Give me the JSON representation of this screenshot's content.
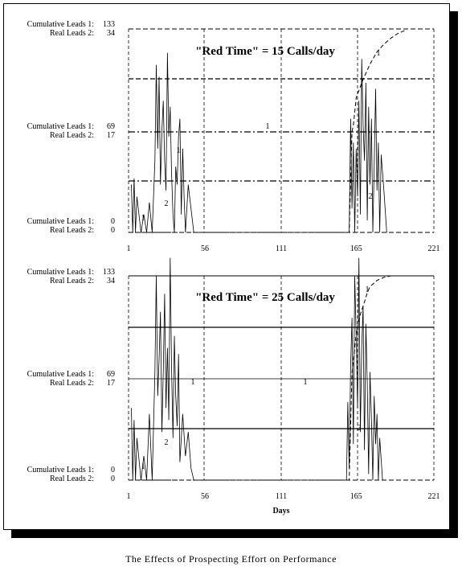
{
  "caption": "The Effects of Prospecting Effort on Performance",
  "chart_data": [
    {
      "type": "line",
      "title": "\"Red Time\" = 15 Calls/day",
      "y_labels": {
        "top": [
          "Cumulative Leads 1:",
          "133",
          "Real Leads 2:",
          "34"
        ],
        "middle": [
          "Cumulative Leads 1:",
          "69",
          "Real Leads 2:",
          "17"
        ],
        "bottom": [
          "Cumulative Leads 1:",
          "0",
          "Real Leads 2:",
          "0"
        ]
      },
      "ylim_series1": [
        0,
        133
      ],
      "ylim_series2": [
        0,
        34
      ],
      "x_ticks": [
        "1",
        "56",
        "111",
        "165",
        "221"
      ],
      "xlim": [
        1,
        221
      ],
      "xlabel": "",
      "grid": true,
      "series": [
        {
          "name": "1",
          "x": [
            1,
            110,
            111,
            160,
            162,
            163,
            165,
            170,
            175,
            180,
            185,
            190,
            195,
            200
          ],
          "y": [
            0,
            0,
            0,
            0,
            66,
            70,
            88,
            100,
            110,
            118,
            123,
            127,
            130,
            132
          ]
        },
        {
          "name": "2",
          "x": [
            3,
            4,
            5,
            6,
            7,
            10,
            12,
            14,
            16,
            18,
            20,
            21,
            22,
            23,
            24,
            25,
            26,
            27,
            28,
            29,
            30,
            31,
            32,
            33,
            34,
            35,
            36,
            37,
            38,
            39,
            40,
            41,
            42,
            44,
            46,
            48,
            160,
            161,
            162,
            163,
            164,
            165,
            166,
            167,
            168,
            169,
            170,
            171,
            172,
            173,
            174,
            175,
            176,
            177,
            178,
            179,
            180,
            181,
            182,
            183,
            185,
            187
          ],
          "y": [
            8,
            0,
            9,
            0,
            6,
            0,
            3,
            0,
            5,
            0,
            12,
            28,
            14,
            26,
            8,
            17,
            22,
            12,
            7,
            30,
            16,
            21,
            10,
            3,
            0,
            11,
            8,
            16,
            19,
            3,
            14,
            6,
            0,
            8,
            4,
            0,
            0,
            19,
            4,
            15,
            0,
            14,
            6,
            22,
            3,
            29,
            18,
            12,
            25,
            2,
            21,
            8,
            19,
            0,
            11,
            24,
            7,
            15,
            0,
            13,
            7,
            0
          ]
        }
      ]
    },
    {
      "type": "line",
      "title": "\"Red Time\" = 25 Calls/day",
      "y_labels": {
        "top": [
          "Cumulative Leads 1:",
          "133",
          "Real Leads 2:",
          "34"
        ],
        "middle": [
          "Cumulative Leads 1:",
          "69",
          "Real Leads 2:",
          "17"
        ],
        "bottom": [
          "Cumulative Leads 1:",
          "0",
          "Real Leads 2:",
          "0"
        ]
      },
      "ylim_series1": [
        0,
        133
      ],
      "ylim_series2": [
        0,
        34
      ],
      "x_ticks": [
        "1",
        "56",
        "111",
        "165",
        "221"
      ],
      "xlim": [
        1,
        221
      ],
      "xlabel": "Days",
      "grid": true,
      "series": [
        {
          "name": "1",
          "x": [
            1,
            160,
            162,
            165,
            168,
            171,
            173,
            175,
            180,
            185,
            190,
            195,
            200,
            210,
            221
          ],
          "y": [
            0,
            0,
            70,
            95,
            108,
            116,
            122,
            126,
            130,
            132,
            133,
            133,
            133,
            133,
            133
          ]
        },
        {
          "name": "2",
          "x": [
            3,
            4,
            5,
            6,
            7,
            10,
            12,
            14,
            16,
            18,
            20,
            21,
            22,
            23,
            24,
            25,
            26,
            27,
            28,
            29,
            30,
            31,
            32,
            33,
            34,
            35,
            36,
            37,
            38,
            40,
            42,
            44,
            46,
            48,
            158,
            159,
            160,
            161,
            162,
            163,
            164,
            165,
            166,
            167,
            168,
            169,
            170,
            171,
            172,
            173,
            174,
            175,
            176,
            177,
            178,
            179,
            180,
            181,
            182,
            184
          ],
          "y": [
            12,
            0,
            10,
            0,
            7,
            0,
            4,
            0,
            11,
            0,
            18,
            34,
            14,
            20,
            28,
            8,
            18,
            31,
            12,
            22,
            10,
            37,
            19,
            7,
            24,
            14,
            9,
            21,
            3,
            11,
            4,
            8,
            2,
            0,
            0,
            13,
            2,
            19,
            27,
            6,
            34,
            24,
            12,
            37,
            8,
            22,
            29,
            5,
            26,
            16,
            1,
            18,
            10,
            0,
            14,
            6,
            11,
            0,
            7,
            0
          ]
        }
      ]
    }
  ]
}
